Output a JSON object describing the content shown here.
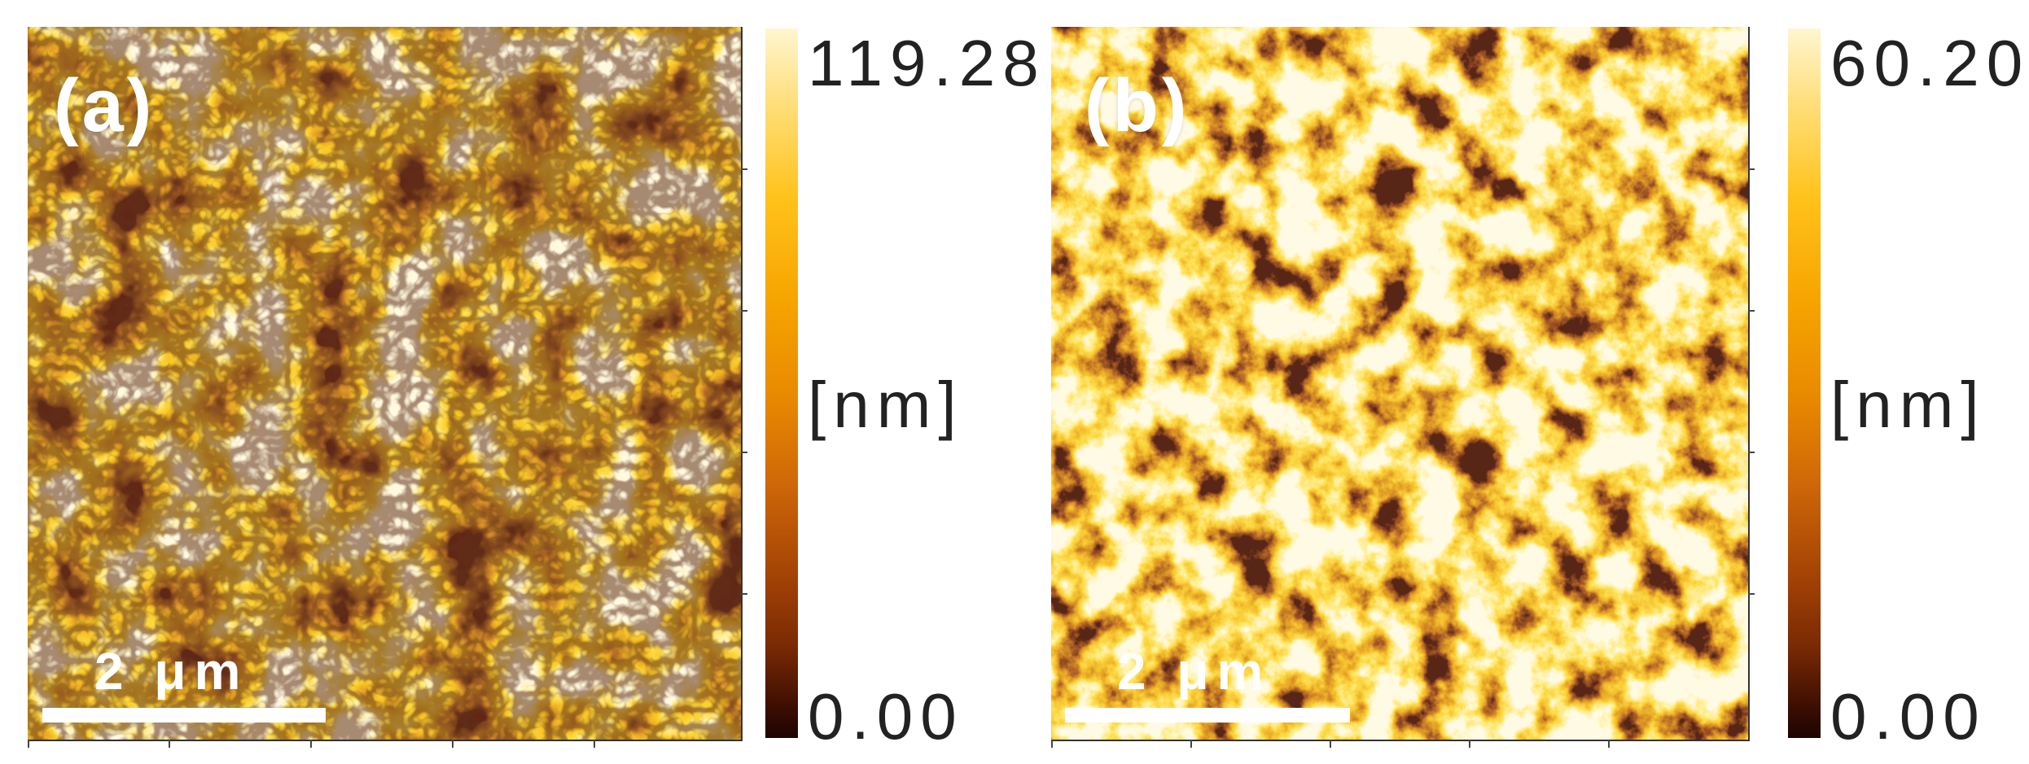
{
  "panels": [
    {
      "label": "(a)",
      "scale_bar_text": "2 μm",
      "colorbar": {
        "max_label": "119.28",
        "unit_label": "[nm]",
        "min_label": "0.00"
      }
    },
    {
      "label": "(b)",
      "scale_bar_text": "2 μm",
      "colorbar": {
        "max_label": "60.20",
        "unit_label": "[nm]",
        "min_label": "0.00"
      }
    }
  ],
  "colors": {
    "colormap_low": "#1c0402",
    "colormap_mid": "#e88a00",
    "colormap_high": "#fff6d0",
    "label_color": "#ffffff",
    "text_color": "#222222"
  }
}
